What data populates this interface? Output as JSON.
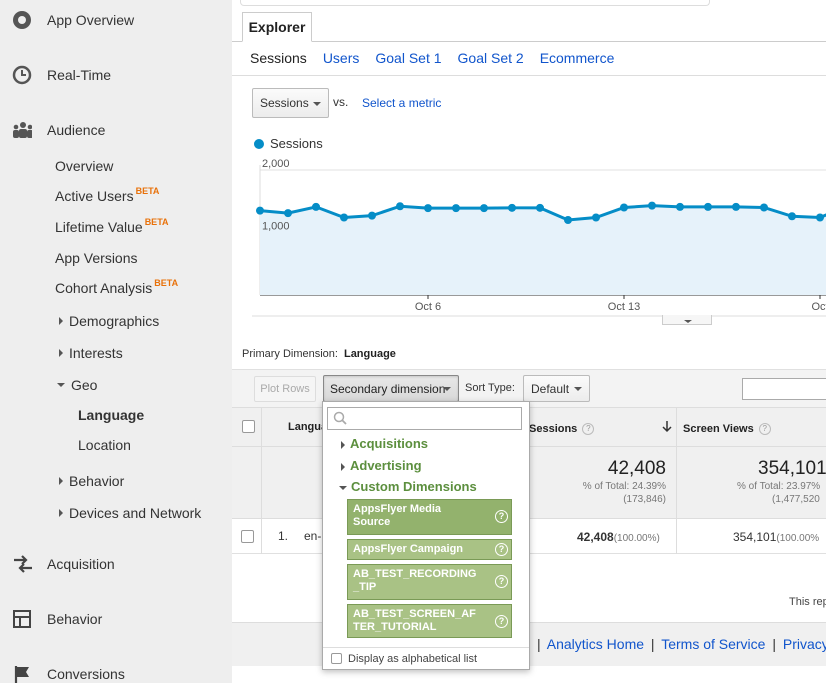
{
  "sidebar": {
    "app_overview": "App Overview",
    "real_time": "Real-Time",
    "audience": "Audience",
    "overview": "Overview",
    "active_users": "Active Users",
    "lifetime_value": "Lifetime Value",
    "app_versions": "App Versions",
    "cohort_analysis": "Cohort Analysis",
    "beta": "BETA",
    "demographics": "Demographics",
    "interests": "Interests",
    "geo": "Geo",
    "language": "Language",
    "location": "Location",
    "behavior_sub": "Behavior",
    "devices_network": "Devices and Network",
    "acquisition": "Acquisition",
    "behavior": "Behavior",
    "conversions": "Conversions"
  },
  "explorer": {
    "tab_label": "Explorer",
    "subtabs": [
      "Sessions",
      "Users",
      "Goal Set 1",
      "Goal Set 2",
      "Ecommerce"
    ]
  },
  "metric": {
    "selected": "Sessions",
    "vs": "vs.",
    "select_metric": "Select a metric"
  },
  "chart_data": {
    "type": "area",
    "series": [
      {
        "name": "Sessions",
        "color": "#058dc7",
        "values": [
          1350,
          1310,
          1410,
          1240,
          1270,
          1420,
          1390,
          1390,
          1390,
          1395,
          1395,
          1200,
          1240,
          1400,
          1430,
          1410,
          1410,
          1410,
          1400,
          1260,
          1240,
          1430,
          1390
        ]
      }
    ],
    "ylim": [
      0,
      2000
    ],
    "yticks": [
      "2,000",
      "1,000"
    ],
    "xticks": [
      "Oct 6",
      "Oct 13",
      "Oct"
    ],
    "grid": true
  },
  "primary_dimension": {
    "label": "Primary Dimension:",
    "value": "Language"
  },
  "toolbar": {
    "plot_rows": "Plot Rows",
    "secondary_dimension": "Secondary dimension",
    "sort_type_label": "Sort Type:",
    "sort_type_value": "Default"
  },
  "table": {
    "headers": {
      "language": "Langua",
      "sessions": "Sessions",
      "screen_views": "Screen Views",
      "q": "?"
    },
    "summary": {
      "sessions_total": "42,408",
      "sessions_pct": "% of Total: 24.39%",
      "sessions_of": "(173,846)",
      "views_total": "354,101",
      "views_pct": "% of Total: 23.97%",
      "views_of": "(1,477,520"
    },
    "rows": [
      {
        "index": "1.",
        "language": "en-",
        "sessions": "42,408",
        "sessions_pct": "(100.00%)",
        "views": "354,101",
        "views_pct": "(100.00%"
      }
    ]
  },
  "this_report": "This rep",
  "footer": {
    "links": [
      "Analytics Home",
      "Terms of Service",
      "Privacy Polic"
    ],
    "sep": "|"
  },
  "dropdown": {
    "categories": [
      "Acquisitions",
      "Advertising",
      "Custom Dimensions"
    ],
    "items": [
      "AppsFlyer Media Source",
      "AppsFlyer Campaign",
      "AB_TEST_RECORDING_TIP",
      "AB_TEST_SCREEN_AFTER_TUTORIAL"
    ],
    "item_lines": [
      [
        "AppsFlyer Media",
        "Source"
      ],
      [
        "AppsFlyer Campaign"
      ],
      [
        "AB_TEST_RECORDING",
        "_TIP"
      ],
      [
        "AB_TEST_SCREEN_AF",
        "TER_TUTORIAL"
      ]
    ],
    "help": "?",
    "alphabetical": "Display as alphabetical list"
  }
}
